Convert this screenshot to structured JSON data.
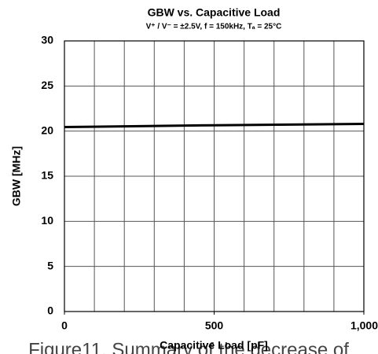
{
  "chart_data": {
    "type": "line",
    "title": "GBW vs. Capacitive Load",
    "subtitle": "V⁺ / V⁻ = ±2.5V, f = 150kHz, Tₐ = 25°C",
    "x_label": "Capacitive Load [pF]",
    "y_label": "GBW [MHz]",
    "caption": "Figure11. Summary of the decrease of",
    "x": [
      0,
      250,
      500,
      750,
      1000
    ],
    "series": [
      {
        "name": "GBW",
        "color": "#000000",
        "values": [
          20.45,
          20.55,
          20.65,
          20.72,
          20.8
        ]
      }
    ],
    "xlim": [
      0,
      1000
    ],
    "ylim": [
      0,
      30
    ],
    "xticks": [
      0,
      500,
      {
        "value": 1000,
        "label": "1,000"
      }
    ],
    "x_grid": [
      100,
      200,
      300,
      400,
      500,
      600,
      700,
      800,
      900
    ],
    "yticks": [
      0,
      5,
      10,
      15,
      20,
      25,
      30
    ],
    "grid": true
  }
}
